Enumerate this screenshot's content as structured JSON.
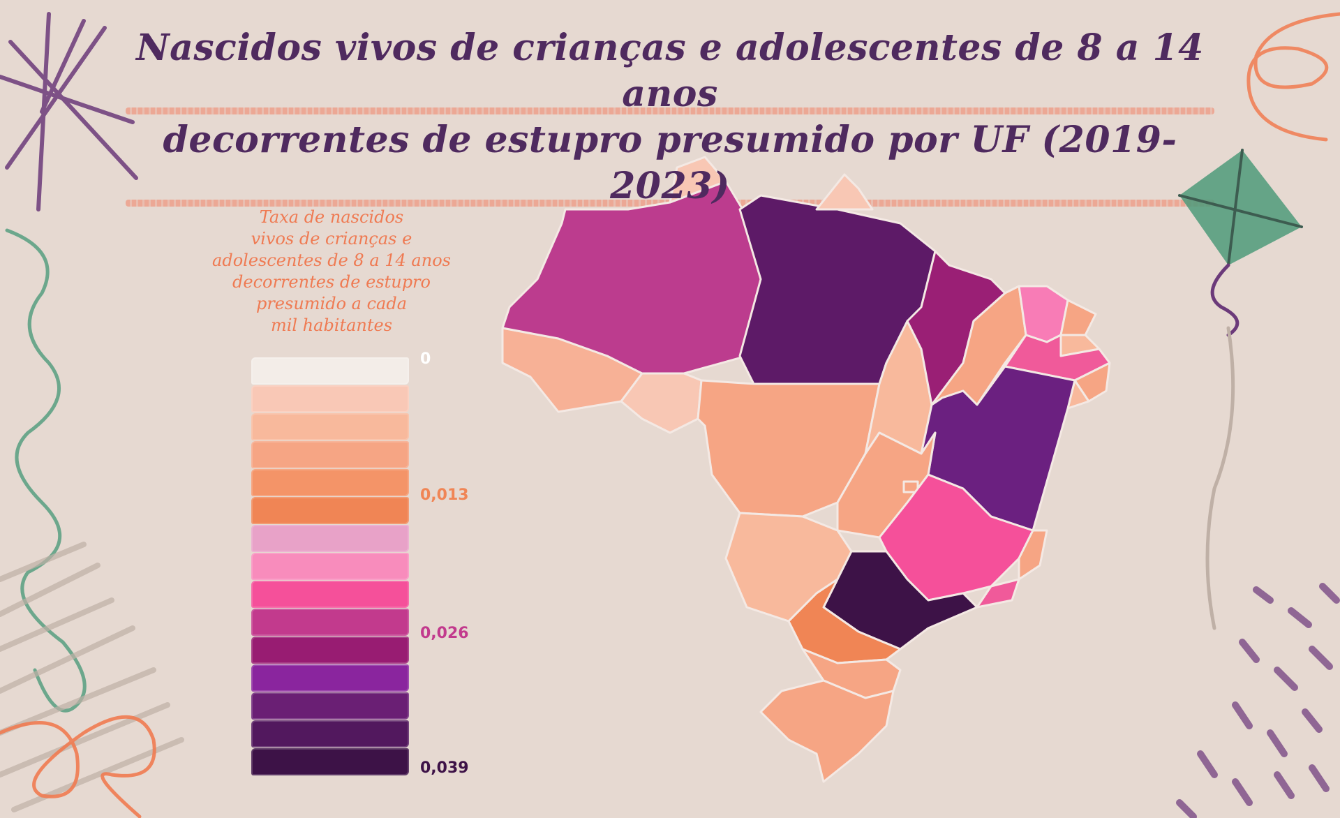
{
  "title": {
    "line1": "Nascidos vivos de crianças e adolescentes de 8 a 14 anos",
    "line2": "decorrentes de estupro presumido por UF (2019-2023)"
  },
  "legend": {
    "title": "Taxa de nascidos\nvivos de crianças e\nadolescentes de 8 a 14 anos\ndecorrentes de estupro\npresumido a cada\nmil habitantes",
    "ticks": [
      {
        "label": "0",
        "color": "#f2ece7"
      },
      {
        "label": "0,013",
        "color": "#f08555"
      },
      {
        "label": "0,026",
        "color": "#c23a8d"
      },
      {
        "label": "0,039",
        "color": "#3d1247"
      }
    ],
    "swatches": [
      "#f3ede8",
      "#f9c8b6",
      "#f8b99c",
      "#f6a584",
      "#f49468",
      "#f08555",
      "#e8a2c8",
      "#f88cbc",
      "#f5509a",
      "#c23a8d",
      "#981c72",
      "#8a259e",
      "#6a1f74",
      "#52185e",
      "#3d1247"
    ]
  },
  "colors": {
    "background": "#e6d9d1",
    "title": "#4f2a5f",
    "legend_title": "#ef7a52",
    "state_border": "#f4e9e4"
  },
  "map": {
    "states": [
      {
        "name": "AC",
        "color": "#f7b196"
      },
      {
        "name": "AM",
        "color": "#bc3c8e"
      },
      {
        "name": "RR",
        "color": "#f8c7b4"
      },
      {
        "name": "PA",
        "color": "#5d1a67"
      },
      {
        "name": "AP",
        "color": "#f8c7b4"
      },
      {
        "name": "RO",
        "color": "#f8c7b4"
      },
      {
        "name": "MT",
        "color": "#f6a584"
      },
      {
        "name": "TO",
        "color": "#f8b99c"
      },
      {
        "name": "MA",
        "color": "#9a1f75"
      },
      {
        "name": "PI",
        "color": "#f6a584"
      },
      {
        "name": "CE",
        "color": "#f87cb6"
      },
      {
        "name": "RN",
        "color": "#f6a584"
      },
      {
        "name": "PB",
        "color": "#f8b99c"
      },
      {
        "name": "PE",
        "color": "#f05a9a"
      },
      {
        "name": "AL",
        "color": "#f6a584"
      },
      {
        "name": "SE",
        "color": "#f8b99c"
      },
      {
        "name": "BA",
        "color": "#6b2080"
      },
      {
        "name": "GO",
        "color": "#f6a584"
      },
      {
        "name": "DF",
        "color": "#f6a584"
      },
      {
        "name": "MS",
        "color": "#f8b99c"
      },
      {
        "name": "MG",
        "color": "#f5509a"
      },
      {
        "name": "ES",
        "color": "#f6a584"
      },
      {
        "name": "RJ",
        "color": "#f05a9a"
      },
      {
        "name": "SP",
        "color": "#3d1247"
      },
      {
        "name": "PR",
        "color": "#f08555"
      },
      {
        "name": "SC",
        "color": "#f6a584"
      },
      {
        "name": "RS",
        "color": "#f6a584"
      }
    ]
  }
}
